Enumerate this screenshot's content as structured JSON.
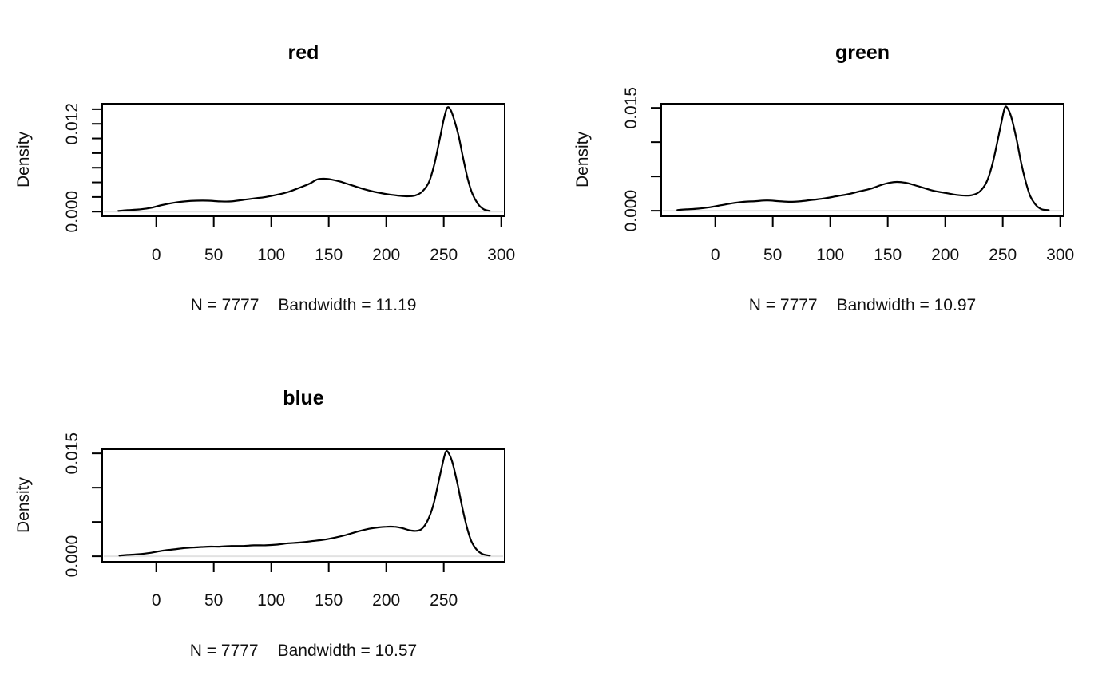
{
  "figure": {
    "background": "#ffffff",
    "line_color": "#000000",
    "zero_line_color": "#e2e2e2",
    "layout": "2x2 grid, bottom-right cell empty"
  },
  "chart_data": [
    {
      "type": "line",
      "title": "red",
      "ylabel": "Density",
      "stats_n": "N = 7777",
      "stats_bw": "Bandwidth = 11.19",
      "n": 7777,
      "bandwidth": 11.19,
      "xlim": [
        -47,
        303
      ],
      "ylim": [
        -0.00063,
        0.01475
      ],
      "x_ticks": [
        0,
        50,
        100,
        150,
        200,
        250,
        300
      ],
      "y_ticks": [
        0,
        0.002,
        0.004,
        0.006,
        0.008,
        0.01,
        0.012,
        0.014
      ],
      "y_labeled_ticks": [
        {
          "value": 0,
          "label": "0.000"
        },
        {
          "value": 0.012,
          "label": "0.012"
        }
      ],
      "grid": false,
      "legend": "none",
      "x": [
        -33,
        -25,
        -15,
        -5,
        5,
        15,
        25,
        35,
        45,
        55,
        65,
        75,
        85,
        95,
        105,
        115,
        125,
        133,
        140,
        146,
        152,
        160,
        170,
        180,
        190,
        200,
        210,
        218,
        225,
        231,
        237,
        242,
        247,
        250,
        253,
        256,
        259,
        263,
        267,
        271,
        275,
        280,
        285,
        290
      ],
      "y": [
        0.0001,
        0.0002,
        0.0003,
        0.0005,
        0.0009,
        0.0012,
        0.0014,
        0.0015,
        0.0015,
        0.0014,
        0.0014,
        0.0016,
        0.0018,
        0.002,
        0.0023,
        0.0027,
        0.0033,
        0.0038,
        0.0044,
        0.0045,
        0.0044,
        0.0041,
        0.0036,
        0.0031,
        0.0027,
        0.0024,
        0.0022,
        0.0021,
        0.0022,
        0.0027,
        0.004,
        0.0066,
        0.0103,
        0.0126,
        0.0142,
        0.0139,
        0.0126,
        0.0103,
        0.0072,
        0.0044,
        0.0024,
        0.001,
        0.0003,
        0.0001
      ]
    },
    {
      "type": "line",
      "title": "green",
      "ylabel": "Density",
      "stats_n": "N = 7777",
      "stats_bw": "Bandwidth = 10.97",
      "n": 7777,
      "bandwidth": 10.97,
      "xlim": [
        -47,
        303
      ],
      "ylim": [
        -0.0008,
        0.0156
      ],
      "x_ticks": [
        0,
        50,
        100,
        150,
        200,
        250,
        300
      ],
      "y_ticks": [
        0,
        0.005,
        0.01,
        0.015
      ],
      "y_labeled_ticks": [
        {
          "value": 0,
          "label": "0.000"
        },
        {
          "value": 0.015,
          "label": "0.015"
        }
      ],
      "grid": false,
      "legend": "none",
      "x": [
        -33,
        -25,
        -15,
        -5,
        5,
        15,
        25,
        35,
        45,
        55,
        65,
        75,
        85,
        95,
        105,
        115,
        125,
        135,
        145,
        152,
        158,
        165,
        172,
        180,
        190,
        200,
        210,
        218,
        224,
        230,
        236,
        241,
        245,
        249,
        252,
        255,
        258,
        262,
        266,
        270,
        274,
        279,
        284,
        290
      ],
      "y": [
        0.0001,
        0.0002,
        0.0003,
        0.0005,
        0.0008,
        0.0011,
        0.0013,
        0.0014,
        0.0015,
        0.0014,
        0.0013,
        0.0014,
        0.0016,
        0.0018,
        0.0021,
        0.0024,
        0.0028,
        0.0032,
        0.0038,
        0.0041,
        0.0042,
        0.0041,
        0.0038,
        0.0034,
        0.0029,
        0.0026,
        0.0023,
        0.0022,
        0.0023,
        0.0028,
        0.0042,
        0.0068,
        0.0098,
        0.013,
        0.0151,
        0.0147,
        0.0133,
        0.0104,
        0.007,
        0.0042,
        0.0021,
        0.0008,
        0.0002,
        0.0001
      ]
    },
    {
      "type": "line",
      "title": "blue",
      "ylabel": "Density",
      "stats_n": "N = 7777",
      "stats_bw": "Bandwidth = 10.57",
      "n": 7777,
      "bandwidth": 10.57,
      "xlim": [
        -47,
        303
      ],
      "ylim": [
        -0.0008,
        0.0156
      ],
      "x_ticks": [
        0,
        50,
        100,
        150,
        200,
        250
      ],
      "y_ticks": [
        0,
        0.005,
        0.01,
        0.015
      ],
      "y_labeled_ticks": [
        {
          "value": 0,
          "label": "0.000"
        },
        {
          "value": 0.015,
          "label": "0.015"
        }
      ],
      "grid": false,
      "legend": "none",
      "x": [
        -32,
        -25,
        -15,
        -5,
        5,
        15,
        25,
        35,
        45,
        55,
        65,
        75,
        85,
        95,
        105,
        115,
        125,
        135,
        145,
        155,
        165,
        175,
        185,
        193,
        200,
        207,
        214,
        220,
        226,
        231,
        236,
        241,
        245,
        249,
        252,
        255,
        258,
        262,
        266,
        270,
        274,
        279,
        284,
        290
      ],
      "y": [
        0.0001,
        0.0002,
        0.0003,
        0.0005,
        0.0008,
        0.001,
        0.0012,
        0.0013,
        0.0014,
        0.0014,
        0.0015,
        0.0015,
        0.0016,
        0.0016,
        0.0017,
        0.0019,
        0.002,
        0.0022,
        0.0024,
        0.0027,
        0.0031,
        0.0036,
        0.004,
        0.0042,
        0.0043,
        0.0043,
        0.0041,
        0.0038,
        0.0037,
        0.004,
        0.0052,
        0.0075,
        0.0105,
        0.0135,
        0.0153,
        0.0148,
        0.0134,
        0.0105,
        0.0072,
        0.0043,
        0.0022,
        0.0009,
        0.0003,
        0.0001
      ]
    }
  ]
}
